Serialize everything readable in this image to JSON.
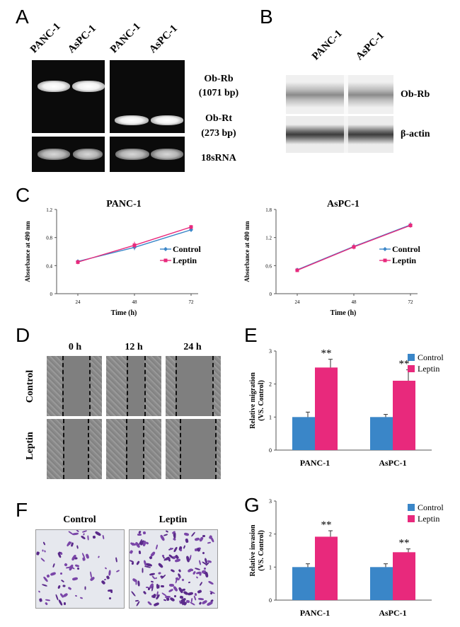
{
  "panels": {
    "a": "A",
    "b": "B",
    "c": "C",
    "d": "D",
    "e": "E",
    "f": "F",
    "g": "G"
  },
  "panel_a": {
    "lanes": [
      "PANC-1",
      "AsPC-1",
      "PANC-1",
      "AsPC-1"
    ],
    "ob_rb": "Ob-Rb",
    "ob_rb_size": "(1071 bp)",
    "ob_rt": "Ob-Rt",
    "ob_rt_size": "(273 bp)",
    "rrna": "18sRNA"
  },
  "panel_b": {
    "lanes": [
      "PANC-1",
      "AsPC-1"
    ],
    "ob_rb": "Ob-Rb",
    "actin": "β-actin"
  },
  "panel_d": {
    "times": [
      "0 h",
      "12 h",
      "24 h"
    ],
    "rows": [
      "Control",
      "Leptin"
    ]
  },
  "panel_f": {
    "labels": [
      "Control",
      "Leptin"
    ]
  },
  "chart_data": [
    {
      "type": "line",
      "panel": "C",
      "title": "PANC-1",
      "xlabel": "Time (h)",
      "ylabel": "Absorbance at 490 nm",
      "x": [
        "24",
        "48",
        "72"
      ],
      "ylim": [
        0,
        1.2
      ],
      "yticks": [
        "0",
        "0.4",
        "0.8",
        "1.2"
      ],
      "series": [
        {
          "name": "Control",
          "values": [
            0.46,
            0.66,
            0.91
          ],
          "errors": [
            0.02,
            0.04,
            0.03
          ],
          "color": "#3a86c8"
        },
        {
          "name": "Leptin",
          "values": [
            0.45,
            0.69,
            0.95
          ],
          "errors": [
            0.03,
            0.05,
            0.03
          ],
          "color": "#e8297c"
        }
      ],
      "legend": "right"
    },
    {
      "type": "line",
      "panel": "C",
      "title": "AsPC-1",
      "xlabel": "Time (h)",
      "ylabel": "Absorbance at 490 nm",
      "x": [
        "24",
        "48",
        "72"
      ],
      "ylim": [
        0,
        1.8
      ],
      "yticks": [
        "0",
        "0.6",
        "1.2",
        "1.8"
      ],
      "series": [
        {
          "name": "Control",
          "values": [
            0.51,
            1.01,
            1.47
          ],
          "errors": [
            0.02,
            0.06,
            0.06
          ],
          "color": "#3a86c8"
        },
        {
          "name": "Leptin",
          "values": [
            0.5,
            1.0,
            1.46
          ],
          "errors": [
            0.02,
            0.05,
            0.05
          ],
          "color": "#e8297c"
        }
      ],
      "legend": "right"
    },
    {
      "type": "bar",
      "panel": "E",
      "categories": [
        "PANC-1",
        "AsPC-1"
      ],
      "ylabel": "Relative migration",
      "ylabel2": "(VS. Control)",
      "ylim": [
        0,
        3
      ],
      "yticks": [
        "0",
        "1",
        "2",
        "3"
      ],
      "series": [
        {
          "name": "Control",
          "values": [
            1.0,
            1.0
          ],
          "errors": [
            0.15,
            0.08
          ],
          "color": "#3a86c8"
        },
        {
          "name": "Leptin",
          "values": [
            2.5,
            2.1
          ],
          "errors": [
            0.25,
            0.33
          ],
          "color": "#e8297c"
        }
      ],
      "annotations": [
        "**",
        "**"
      ],
      "legend": "top-right"
    },
    {
      "type": "bar",
      "panel": "G",
      "categories": [
        "PANC-1",
        "AsPC-1"
      ],
      "ylabel": "Relative invasion",
      "ylabel2": "(VS. Control)",
      "ylim": [
        0,
        3
      ],
      "yticks": [
        "0",
        "1",
        "2",
        "3"
      ],
      "series": [
        {
          "name": "Control",
          "values": [
            1.0,
            1.0
          ],
          "errors": [
            0.1,
            0.1
          ],
          "color": "#3a86c8"
        },
        {
          "name": "Leptin",
          "values": [
            1.92,
            1.45
          ],
          "errors": [
            0.18,
            0.1
          ],
          "color": "#e8297c"
        }
      ],
      "annotations": [
        "**",
        "**"
      ],
      "legend": "top-right"
    }
  ]
}
